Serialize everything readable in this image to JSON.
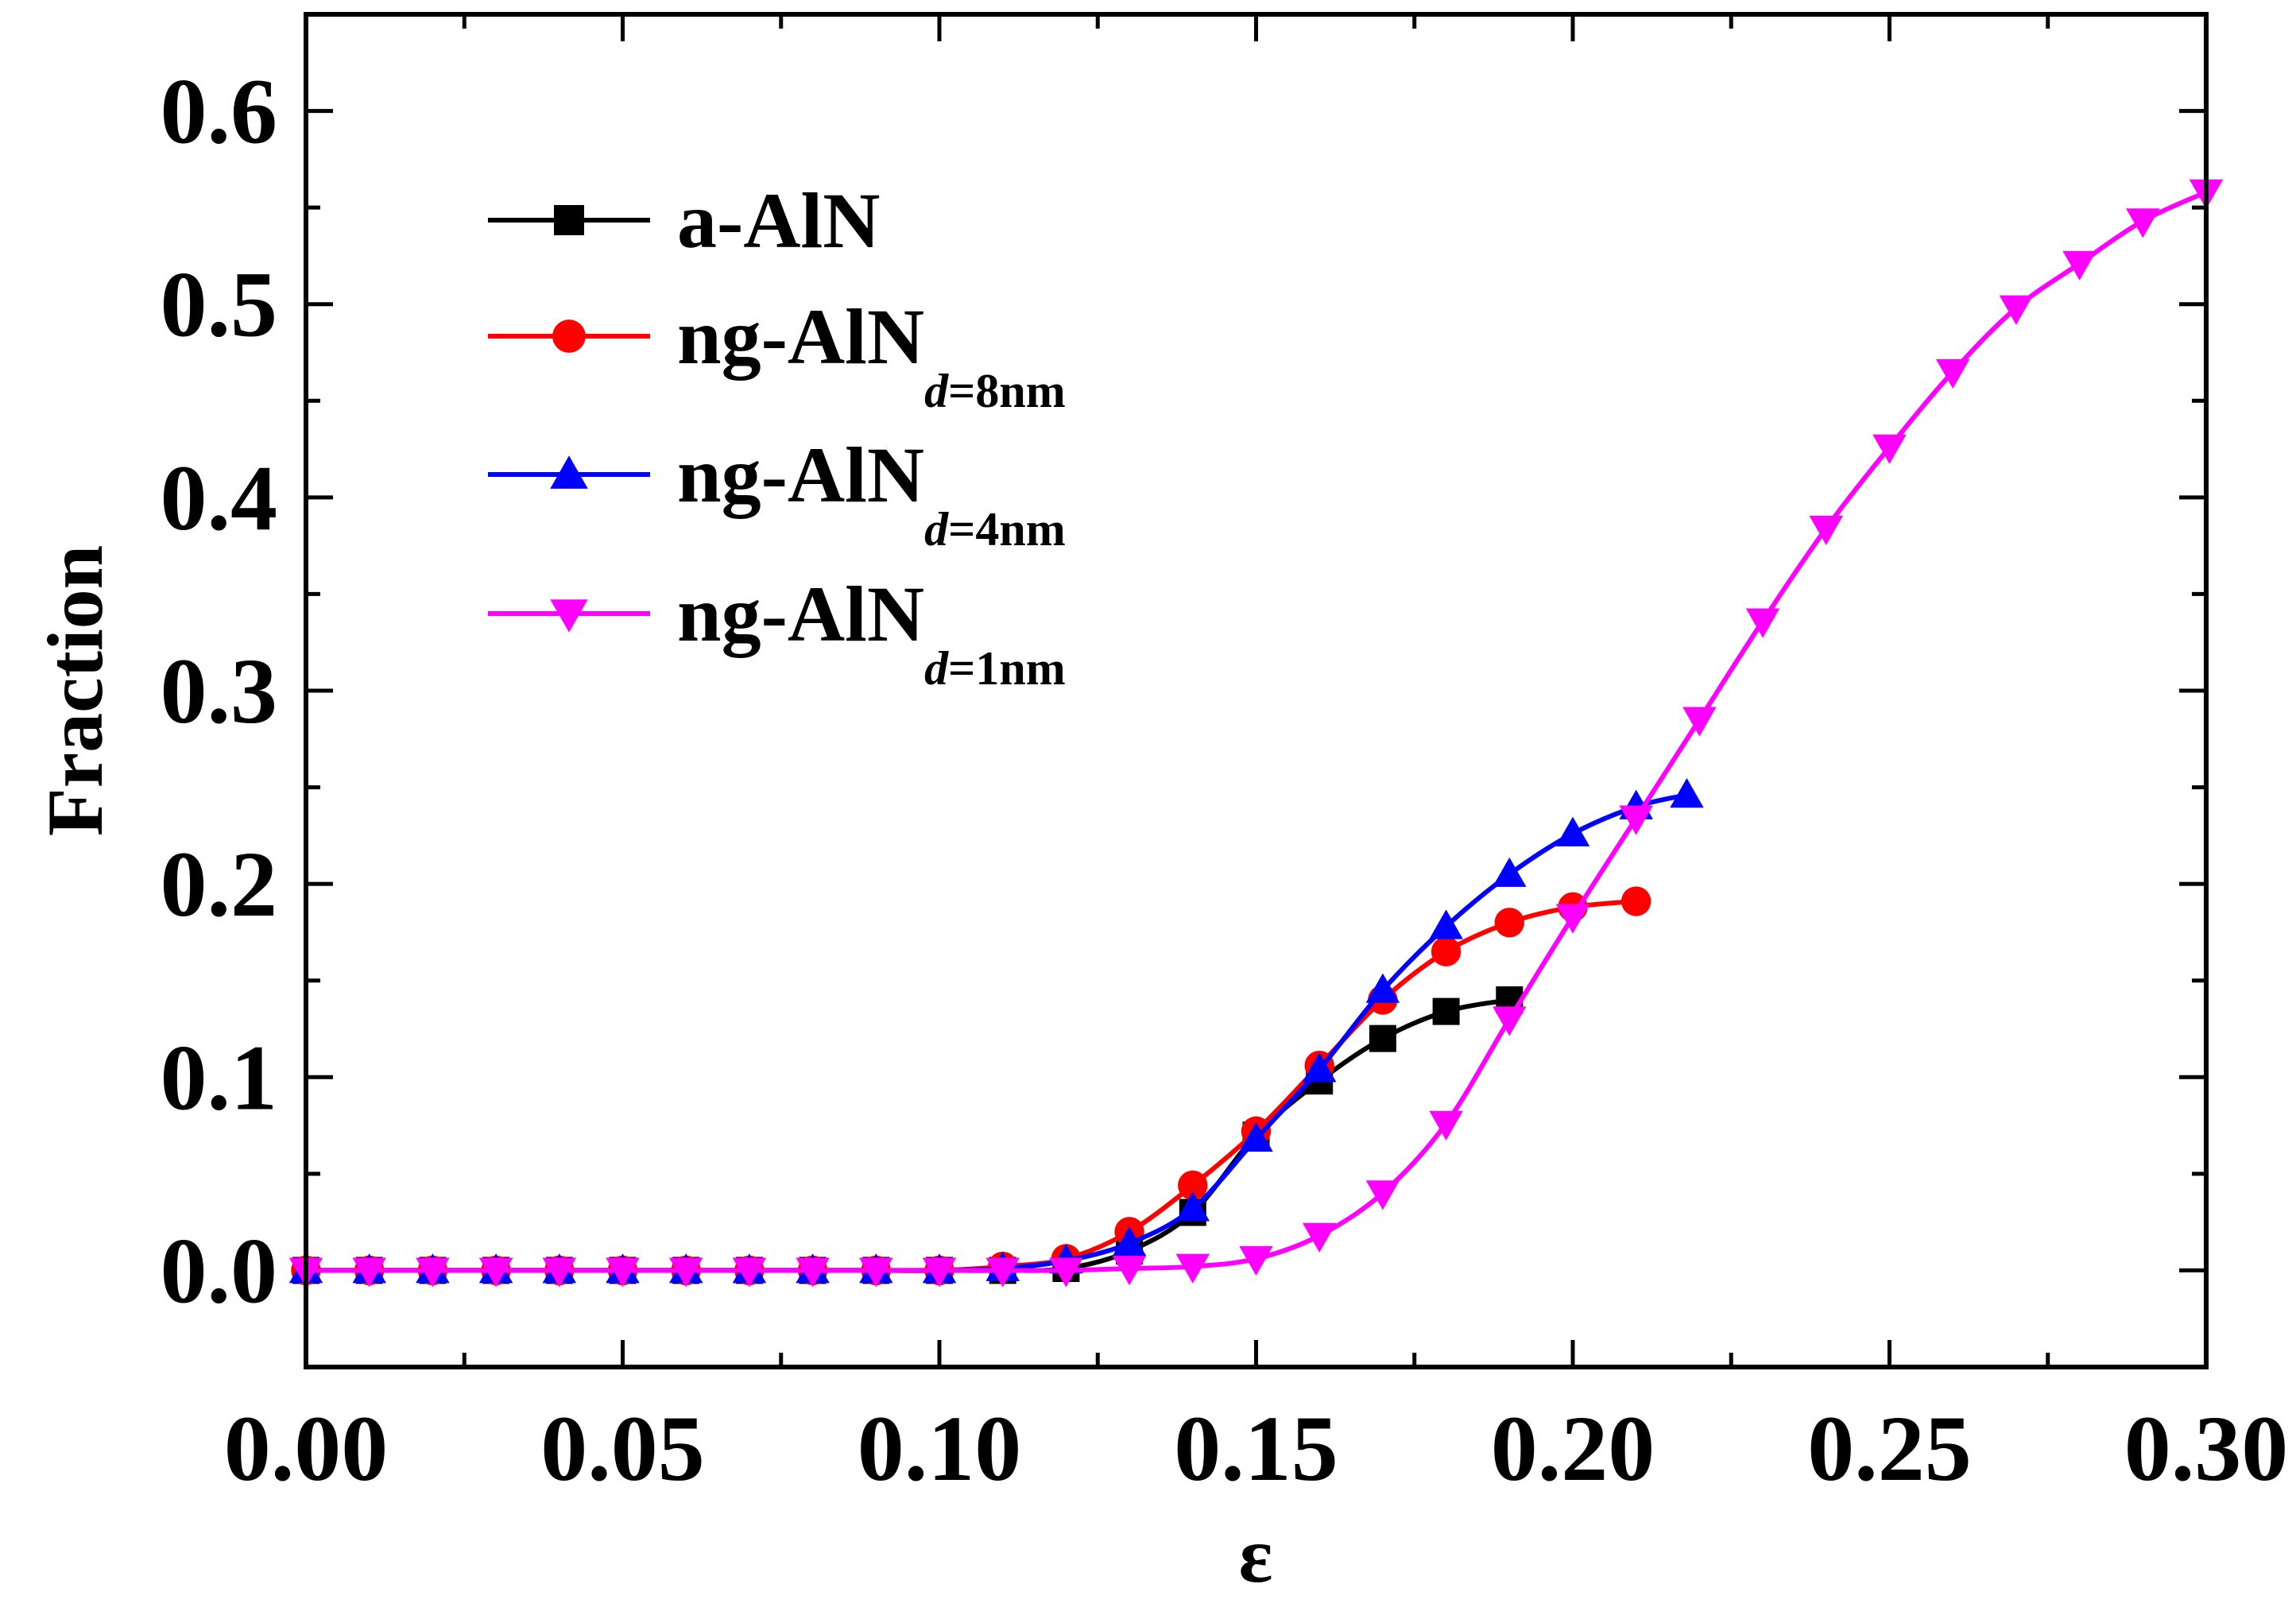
{
  "chart_data": {
    "type": "line",
    "title": "",
    "xlabel": "ε",
    "ylabel": "Fraction",
    "xlim": [
      0.0,
      0.3
    ],
    "ylim": [
      -0.05,
      0.65
    ],
    "xticks": [
      "0.00",
      "0.05",
      "0.10",
      "0.15",
      "0.20",
      "0.25",
      "0.30"
    ],
    "yticks": [
      "0.0",
      "0.1",
      "0.2",
      "0.3",
      "0.4",
      "0.5",
      "0.6"
    ],
    "legend_position": "top-left",
    "series": [
      {
        "name": "a-AlN",
        "label_main": "a-AlN",
        "label_sub_italic": "",
        "label_sub": "",
        "color": "#000000",
        "marker": "square",
        "x": [
          0.0,
          0.01,
          0.02,
          0.03,
          0.04,
          0.05,
          0.06,
          0.07,
          0.08,
          0.09,
          0.1,
          0.11,
          0.12,
          0.13,
          0.14,
          0.15,
          0.16,
          0.17,
          0.18,
          0.19
        ],
        "y": [
          0.0,
          0.0,
          0.0,
          0.0,
          0.0,
          0.0,
          0.0,
          0.0,
          0.0,
          0.0,
          0.0,
          0.0,
          0.001,
          0.01,
          0.03,
          0.07,
          0.098,
          0.12,
          0.134,
          0.14
        ]
      },
      {
        "name": "ng-AlN d=8nm",
        "label_main": "ng-AlN",
        "label_sub_italic": "d",
        "label_sub": "=8nm",
        "color": "#ff0000",
        "marker": "circle",
        "x": [
          0.0,
          0.01,
          0.02,
          0.03,
          0.04,
          0.05,
          0.06,
          0.07,
          0.08,
          0.09,
          0.1,
          0.11,
          0.12,
          0.13,
          0.14,
          0.15,
          0.16,
          0.17,
          0.18,
          0.19,
          0.2,
          0.21
        ],
        "y": [
          0.0,
          0.0,
          0.0,
          0.0,
          0.0,
          0.0,
          0.0,
          0.0,
          0.0,
          0.0,
          0.0,
          0.002,
          0.006,
          0.02,
          0.044,
          0.072,
          0.106,
          0.14,
          0.165,
          0.18,
          0.188,
          0.191
        ]
      },
      {
        "name": "ng-AlN d=4nm",
        "label_main": "ng-AlN",
        "label_sub_italic": "d",
        "label_sub": "=4nm",
        "color": "#0000ff",
        "marker": "triangle-up",
        "x": [
          0.0,
          0.01,
          0.02,
          0.03,
          0.04,
          0.05,
          0.06,
          0.07,
          0.08,
          0.09,
          0.1,
          0.11,
          0.12,
          0.13,
          0.14,
          0.15,
          0.16,
          0.17,
          0.18,
          0.19,
          0.2,
          0.21,
          0.218
        ],
        "y": [
          0.0,
          0.0,
          0.0,
          0.0,
          0.0,
          0.0,
          0.0,
          0.0,
          0.0,
          0.0,
          0.0,
          0.001,
          0.005,
          0.014,
          0.032,
          0.068,
          0.104,
          0.145,
          0.178,
          0.205,
          0.226,
          0.24,
          0.246
        ]
      },
      {
        "name": "ng-AlN d=1nm",
        "label_main": "ng-AlN",
        "label_sub_italic": "d",
        "label_sub": "=1nm",
        "color": "#ff00ff",
        "marker": "triangle-down",
        "x": [
          0.0,
          0.01,
          0.02,
          0.03,
          0.04,
          0.05,
          0.06,
          0.07,
          0.08,
          0.09,
          0.1,
          0.11,
          0.12,
          0.13,
          0.14,
          0.15,
          0.16,
          0.17,
          0.18,
          0.19,
          0.2,
          0.21,
          0.22,
          0.23,
          0.24,
          0.25,
          0.26,
          0.27,
          0.28,
          0.29,
          0.3
        ],
        "y": [
          0.0,
          0.0,
          0.0,
          0.0,
          0.0,
          0.0,
          0.0,
          0.0,
          0.0,
          0.0,
          0.0,
          0.0,
          0.0,
          0.001,
          0.002,
          0.006,
          0.018,
          0.04,
          0.076,
          0.13,
          0.183,
          0.234,
          0.285,
          0.336,
          0.384,
          0.426,
          0.465,
          0.498,
          0.521,
          0.543,
          0.558
        ]
      }
    ]
  }
}
